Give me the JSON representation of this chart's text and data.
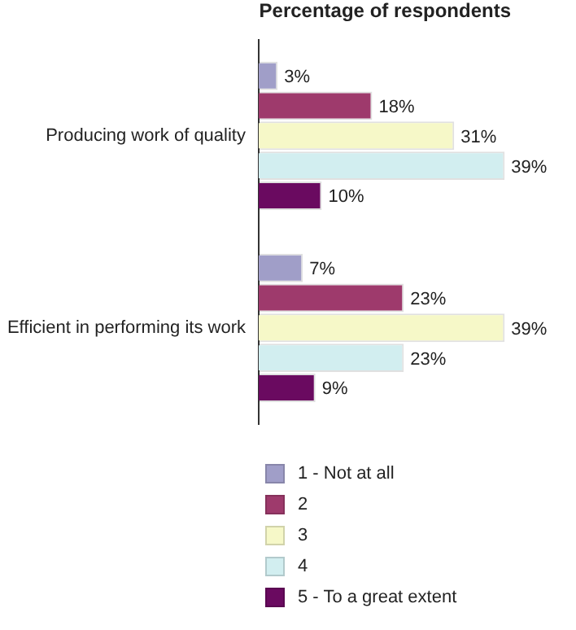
{
  "chart_data": {
    "type": "bar",
    "orientation": "horizontal",
    "title": "Percentage of respondents",
    "categories": [
      "Producing work of quality",
      "Efficient in performing its work"
    ],
    "series": [
      {
        "name": "1 - Not at all",
        "color": "#a09ec8",
        "values": [
          3,
          7
        ],
        "value_labels": [
          "3%",
          "7%"
        ]
      },
      {
        "name": "2",
        "color": "#9e3a6c",
        "values": [
          18,
          23
        ],
        "value_labels": [
          "18%",
          "23%"
        ]
      },
      {
        "name": "3",
        "color": "#f6f8c8",
        "values": [
          31,
          39
        ],
        "value_labels": [
          "31%",
          "39%"
        ]
      },
      {
        "name": "4",
        "color": "#d2eef0",
        "values": [
          39,
          23
        ],
        "value_labels": [
          "39%",
          "23%"
        ]
      },
      {
        "name": "5 - To a great extent",
        "color": "#6a0a60",
        "values": [
          10,
          9
        ],
        "value_labels": [
          "10%",
          "9%"
        ]
      }
    ],
    "legend": "bottom"
  }
}
